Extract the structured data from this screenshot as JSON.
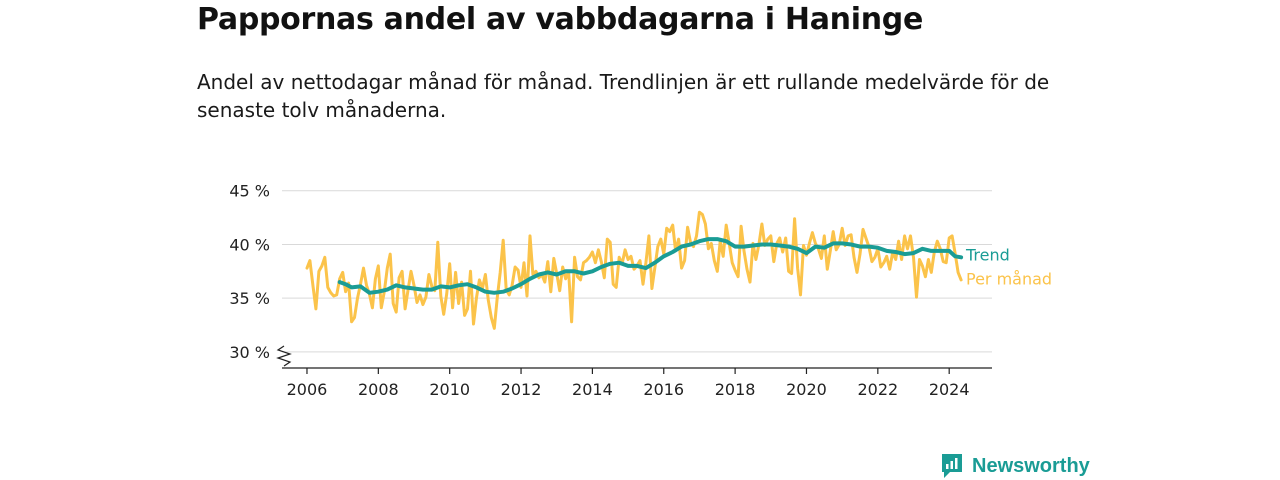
{
  "title": "Pappornas andel av vabbdagarna i Haninge",
  "subtitle": "Andel av nettodagar månad för månad. Trendlinjen är ett rullande medelvärde för de senaste tolv månaderna.",
  "brand": {
    "name": "Newsworthy",
    "icon": "newsworthy-logo-icon",
    "color": "#1a9c95"
  },
  "chart_data": {
    "type": "line",
    "title": "",
    "xlabel": "",
    "ylabel": "",
    "xlim": [
      2005.3,
      2025.2
    ],
    "ylim": [
      28.5,
      46
    ],
    "y_ticks": [
      30,
      35,
      40,
      45
    ],
    "y_tick_labels": [
      "30 %",
      "35 %",
      "40 %",
      "45 %"
    ],
    "x_ticks": [
      2006,
      2008,
      2010,
      2012,
      2014,
      2016,
      2018,
      2020,
      2022,
      2024
    ],
    "x_tick_labels": [
      "2006",
      "2008",
      "2010",
      "2012",
      "2014",
      "2016",
      "2018",
      "2020",
      "2022",
      "2024"
    ],
    "axis_break": true,
    "grid": true,
    "legend": "direct labels at right end of lines",
    "series": [
      {
        "name": "Per månad",
        "color": "#fbc34a",
        "x": [
          2006.0,
          2006.083,
          2006.167,
          2006.25,
          2006.333,
          2006.417,
          2006.5,
          2006.583,
          2006.667,
          2006.75,
          2006.833,
          2006.917,
          2007.0,
          2007.083,
          2007.167,
          2007.25,
          2007.333,
          2007.417,
          2007.5,
          2007.583,
          2007.667,
          2007.75,
          2007.833,
          2007.917,
          2008.0,
          2008.083,
          2008.167,
          2008.25,
          2008.333,
          2008.417,
          2008.5,
          2008.583,
          2008.667,
          2008.75,
          2008.833,
          2008.917,
          2009.0,
          2009.083,
          2009.167,
          2009.25,
          2009.333,
          2009.417,
          2009.5,
          2009.583,
          2009.667,
          2009.75,
          2009.833,
          2009.917,
          2010.0,
          2010.083,
          2010.167,
          2010.25,
          2010.333,
          2010.417,
          2010.5,
          2010.583,
          2010.667,
          2010.75,
          2010.833,
          2010.917,
          2011.0,
          2011.083,
          2011.167,
          2011.25,
          2011.333,
          2011.417,
          2011.5,
          2011.583,
          2011.667,
          2011.75,
          2011.833,
          2011.917,
          2012.0,
          2012.083,
          2012.167,
          2012.25,
          2012.333,
          2012.417,
          2012.5,
          2012.583,
          2012.667,
          2012.75,
          2012.833,
          2012.917,
          2013.0,
          2013.083,
          2013.167,
          2013.25,
          2013.333,
          2013.417,
          2013.5,
          2013.583,
          2013.667,
          2013.75,
          2013.833,
          2013.917,
          2014.0,
          2014.083,
          2014.167,
          2014.25,
          2014.333,
          2014.417,
          2014.5,
          2014.583,
          2014.667,
          2014.75,
          2014.833,
          2014.917,
          2015.0,
          2015.083,
          2015.167,
          2015.25,
          2015.333,
          2015.417,
          2015.5,
          2015.583,
          2015.667,
          2015.75,
          2015.833,
          2015.917,
          2016.0,
          2016.083,
          2016.167,
          2016.25,
          2016.333,
          2016.417,
          2016.5,
          2016.583,
          2016.667,
          2016.75,
          2016.833,
          2016.917,
          2017.0,
          2017.083,
          2017.167,
          2017.25,
          2017.333,
          2017.417,
          2017.5,
          2017.583,
          2017.667,
          2017.75,
          2017.833,
          2017.917,
          2018.0,
          2018.083,
          2018.167,
          2018.25,
          2018.333,
          2018.417,
          2018.5,
          2018.583,
          2018.667,
          2018.75,
          2018.833,
          2018.917,
          2019.0,
          2019.083,
          2019.167,
          2019.25,
          2019.333,
          2019.417,
          2019.5,
          2019.583,
          2019.667,
          2019.75,
          2019.833,
          2019.917,
          2020.0,
          2020.083,
          2020.167,
          2020.25,
          2020.333,
          2020.417,
          2020.5,
          2020.583,
          2020.667,
          2020.75,
          2020.833,
          2020.917,
          2021.0,
          2021.083,
          2021.167,
          2021.25,
          2021.333,
          2021.417,
          2021.5,
          2021.583,
          2021.667,
          2021.75,
          2021.833,
          2021.917,
          2022.0,
          2022.083,
          2022.167,
          2022.25,
          2022.333,
          2022.417,
          2022.5,
          2022.583,
          2022.667,
          2022.75,
          2022.833,
          2022.917,
          2023.0,
          2023.083,
          2023.167,
          2023.25,
          2023.333,
          2023.417,
          2023.5,
          2023.583,
          2023.667,
          2023.75,
          2023.833,
          2023.917,
          2024.0,
          2024.083,
          2024.167,
          2024.25,
          2024.333
        ],
        "values": [
          37.8,
          38.5,
          36.2,
          34.0,
          37.5,
          38.0,
          38.8,
          36.0,
          35.5,
          35.2,
          35.3,
          36.8,
          37.4,
          35.6,
          36.4,
          32.8,
          33.2,
          35.0,
          36.3,
          37.8,
          36.2,
          35.4,
          34.1,
          36.8,
          38.0,
          34.1,
          35.6,
          37.8,
          39.1,
          34.5,
          33.7,
          36.9,
          37.5,
          34.0,
          35.8,
          37.5,
          36.2,
          34.6,
          35.3,
          34.4,
          35.1,
          37.2,
          36.1,
          35.7,
          40.2,
          35.2,
          33.5,
          35.4,
          38.2,
          34.1,
          37.4,
          34.5,
          36.5,
          33.4,
          34.0,
          37.5,
          32.6,
          35.0,
          36.7,
          35.9,
          37.2,
          34.8,
          33.2,
          32.2,
          35.0,
          37.4,
          40.4,
          35.8,
          35.3,
          36.2,
          37.9,
          37.6,
          36.0,
          38.3,
          35.2,
          40.8,
          37.2,
          37.5,
          36.9,
          37.2,
          36.5,
          38.4,
          35.6,
          38.7,
          37.3,
          35.7,
          37.9,
          36.8,
          37.5,
          32.8,
          38.8,
          37.0,
          36.7,
          38.3,
          38.5,
          38.8,
          39.3,
          38.3,
          39.5,
          38.4,
          36.9,
          40.5,
          40.2,
          36.3,
          36.0,
          38.8,
          38.2,
          39.5,
          38.6,
          38.9,
          37.7,
          38.0,
          38.5,
          36.3,
          38.3,
          40.8,
          35.9,
          37.8,
          39.8,
          40.5,
          39.1,
          41.5,
          41.2,
          41.8,
          39.4,
          40.5,
          37.8,
          38.5,
          41.6,
          40.2,
          39.8,
          40.8,
          43.0,
          42.8,
          41.9,
          39.6,
          40.1,
          38.5,
          37.5,
          40.3,
          38.9,
          41.8,
          40.1,
          38.3,
          37.6,
          37.0,
          41.7,
          39.4,
          37.7,
          36.5,
          40.1,
          38.6,
          40.0,
          41.9,
          39.9,
          40.5,
          40.8,
          38.4,
          40.1,
          40.6,
          39.3,
          40.6,
          37.5,
          37.3,
          42.4,
          37.8,
          35.3,
          39.9,
          39.0,
          40.1,
          41.1,
          40.1,
          39.6,
          38.7,
          40.8,
          37.7,
          39.4,
          41.2,
          39.5,
          40.0,
          41.5,
          39.9,
          40.8,
          40.9,
          38.8,
          37.4,
          39.1,
          41.4,
          40.6,
          39.8,
          38.4,
          38.8,
          39.6,
          37.9,
          38.3,
          38.9,
          37.7,
          39.3,
          38.6,
          40.3,
          38.6,
          40.8,
          39.6,
          40.8,
          38.8,
          35.1,
          38.6,
          38.0,
          37.0,
          38.6,
          37.4,
          39.3,
          40.3,
          39.6,
          38.4,
          38.3,
          40.6,
          40.8,
          39.2,
          37.4,
          36.7
        ]
      },
      {
        "name": "Trend",
        "color": "#1a9c95",
        "x": [
          2006.917,
          2007.083,
          2007.25,
          2007.5,
          2007.75,
          2008.0,
          2008.25,
          2008.5,
          2008.75,
          2009.0,
          2009.25,
          2009.5,
          2009.75,
          2010.0,
          2010.25,
          2010.5,
          2010.75,
          2011.0,
          2011.25,
          2011.5,
          2011.75,
          2012.0,
          2012.25,
          2012.5,
          2012.75,
          2013.0,
          2013.25,
          2013.5,
          2013.75,
          2014.0,
          2014.25,
          2014.5,
          2014.75,
          2015.0,
          2015.25,
          2015.5,
          2015.75,
          2016.0,
          2016.25,
          2016.5,
          2016.75,
          2017.0,
          2017.25,
          2017.5,
          2017.75,
          2018.0,
          2018.25,
          2018.5,
          2018.75,
          2019.0,
          2019.25,
          2019.5,
          2019.75,
          2020.0,
          2020.25,
          2020.5,
          2020.75,
          2021.0,
          2021.25,
          2021.5,
          2021.75,
          2022.0,
          2022.25,
          2022.5,
          2022.75,
          2023.0,
          2023.25,
          2023.5,
          2023.75,
          2024.0,
          2024.167,
          2024.333
        ],
        "values": [
          36.5,
          36.3,
          36.0,
          36.1,
          35.5,
          35.6,
          35.8,
          36.2,
          36.0,
          35.9,
          35.8,
          35.8,
          36.1,
          36.0,
          36.2,
          36.3,
          36.0,
          35.6,
          35.5,
          35.6,
          35.9,
          36.3,
          36.8,
          37.2,
          37.4,
          37.2,
          37.5,
          37.5,
          37.3,
          37.5,
          37.9,
          38.2,
          38.3,
          38.0,
          38.0,
          37.8,
          38.3,
          38.9,
          39.3,
          39.8,
          40.0,
          40.3,
          40.5,
          40.5,
          40.3,
          39.8,
          39.8,
          39.9,
          40.0,
          40.0,
          39.9,
          39.8,
          39.6,
          39.2,
          39.8,
          39.7,
          40.1,
          40.1,
          40.0,
          39.8,
          39.8,
          39.7,
          39.4,
          39.3,
          39.1,
          39.2,
          39.6,
          39.4,
          39.4,
          39.4,
          38.9,
          38.8
        ]
      }
    ]
  }
}
